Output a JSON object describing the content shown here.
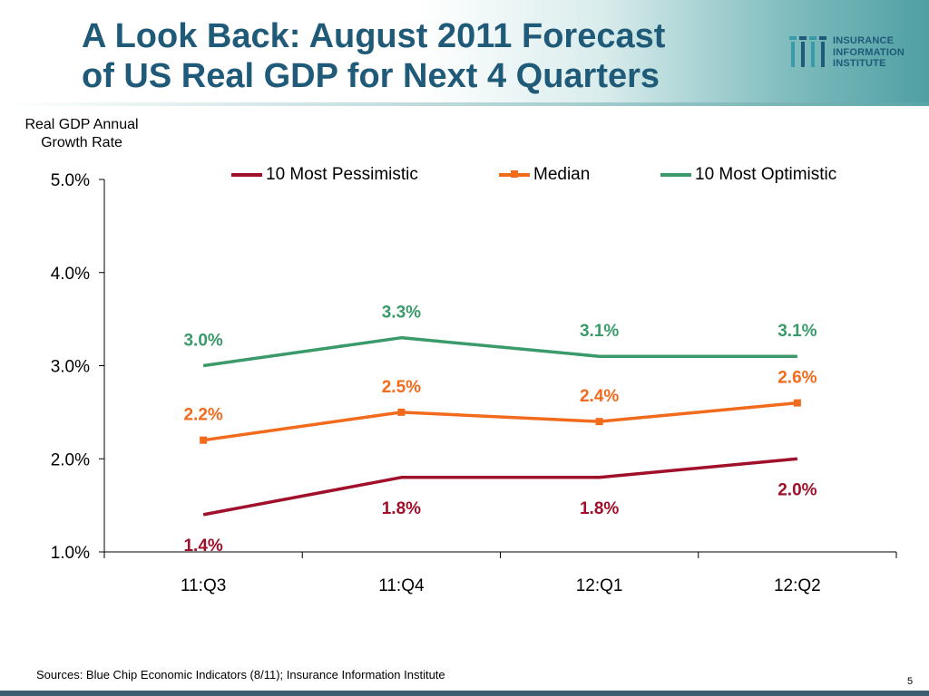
{
  "slide": {
    "title_line1": "A Look Back: August 2011 Forecast",
    "title_line2": "of US Real GDP for Next 4 Quarters",
    "logo_line1": "INSURANCE",
    "logo_line2": "INFORMATION",
    "logo_line3": "INSTITUTE",
    "source": "Sources: Blue Chip Economic Indicators (8/11); Insurance Information Institute",
    "page_number": "5",
    "colors": {
      "title": "#1f5a78",
      "header_accent": "#4e9fa3"
    }
  },
  "chart_data": {
    "type": "line",
    "title": "",
    "ylabel_line1": "Real GDP Annual",
    "ylabel_line2": "Growth Rate",
    "xlabel": "",
    "categories": [
      "11:Q3",
      "11:Q4",
      "12:Q1",
      "12:Q2"
    ],
    "ylim": [
      1.0,
      5.0
    ],
    "yticks": [
      1.0,
      2.0,
      3.0,
      4.0,
      5.0
    ],
    "ytick_labels": [
      "1.0%",
      "2.0%",
      "3.0%",
      "4.0%",
      "5.0%"
    ],
    "grid": false,
    "legend_position": "top",
    "series": [
      {
        "name": "10 Most Pessimistic",
        "color": "#a0102a",
        "marker": "none",
        "values": [
          1.4,
          1.8,
          1.8,
          2.0
        ],
        "labels": [
          "1.4%",
          "1.8%",
          "1.8%",
          "2.0%"
        ],
        "label_side": "below"
      },
      {
        "name": "Median",
        "color": "#f26b1d",
        "marker": "square",
        "values": [
          2.2,
          2.5,
          2.4,
          2.6
        ],
        "labels": [
          "2.2%",
          "2.5%",
          "2.4%",
          "2.6%"
        ],
        "label_side": "above"
      },
      {
        "name": "10 Most Optimistic",
        "color": "#3a9a6a",
        "marker": "none",
        "values": [
          3.0,
          3.3,
          3.1,
          3.1
        ],
        "labels": [
          "3.0%",
          "3.3%",
          "3.1%",
          "3.1%"
        ],
        "label_side": "above"
      }
    ]
  }
}
